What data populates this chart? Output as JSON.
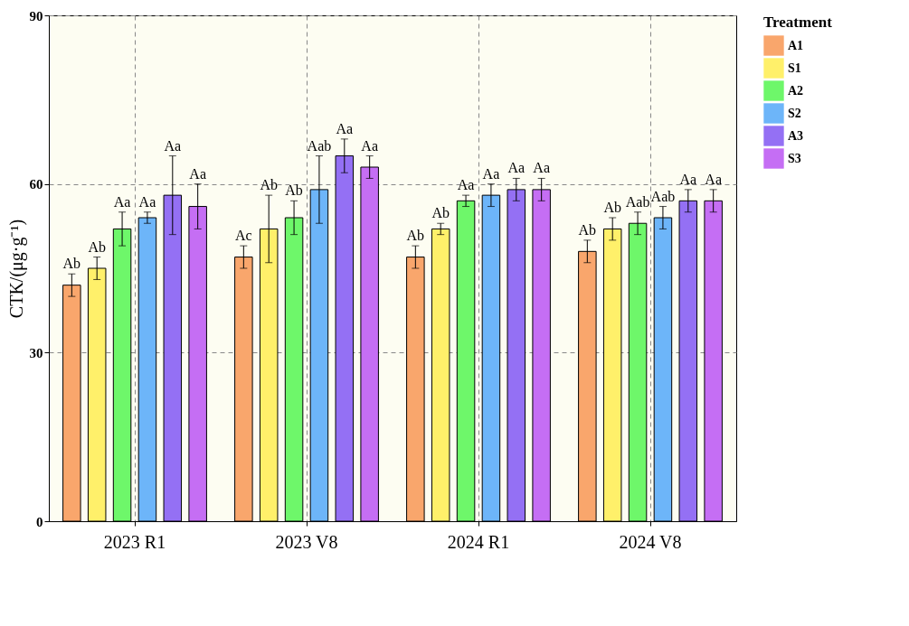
{
  "chart_data": {
    "type": "bar",
    "ylabel": "CTK/(μg·g⁻¹)",
    "legend_title": "Treatment",
    "legend": "right",
    "categories": [
      "2023 R1",
      "2023 V8",
      "2024 R1",
      "2024 V8"
    ],
    "series": [
      {
        "name": "A1",
        "color": "#f9a66c",
        "values": [
          42,
          47,
          47,
          48
        ],
        "errors": [
          2,
          2,
          2,
          2
        ],
        "value_labels": [
          "Ab",
          "Ac",
          "Ab",
          "Ab"
        ]
      },
      {
        "name": "S1",
        "color": "#fff06a",
        "values": [
          45,
          52,
          52,
          52
        ],
        "errors": [
          2,
          6,
          1,
          2
        ],
        "value_labels": [
          "Ab",
          "Ab",
          "Ab",
          "Ab"
        ]
      },
      {
        "name": "A2",
        "color": "#6ef76a",
        "values": [
          52,
          54,
          57,
          53
        ],
        "errors": [
          3,
          3,
          1,
          2
        ],
        "value_labels": [
          "Aa",
          "Ab",
          "Aa",
          "Aab"
        ]
      },
      {
        "name": "S2",
        "color": "#6db5f9",
        "values": [
          54,
          59,
          58,
          54
        ],
        "errors": [
          1,
          6,
          2,
          2
        ],
        "value_labels": [
          "Aa",
          "Aab",
          "Aa",
          "Aab"
        ]
      },
      {
        "name": "A3",
        "color": "#9470f4",
        "values": [
          58,
          65,
          59,
          57
        ],
        "errors": [
          7,
          3,
          2,
          2
        ],
        "value_labels": [
          "Aa",
          "Aa",
          "Aa",
          "Aa"
        ]
      },
      {
        "name": "S3",
        "color": "#c56ef4",
        "values": [
          56,
          63,
          59,
          57
        ],
        "errors": [
          4,
          2,
          2,
          2
        ],
        "value_labels": [
          "Aa",
          "Aa",
          "Aa",
          "Aa"
        ]
      }
    ],
    "ylim": [
      0,
      90
    ],
    "yticks": [
      0,
      30,
      60,
      90
    ],
    "grid": true
  }
}
